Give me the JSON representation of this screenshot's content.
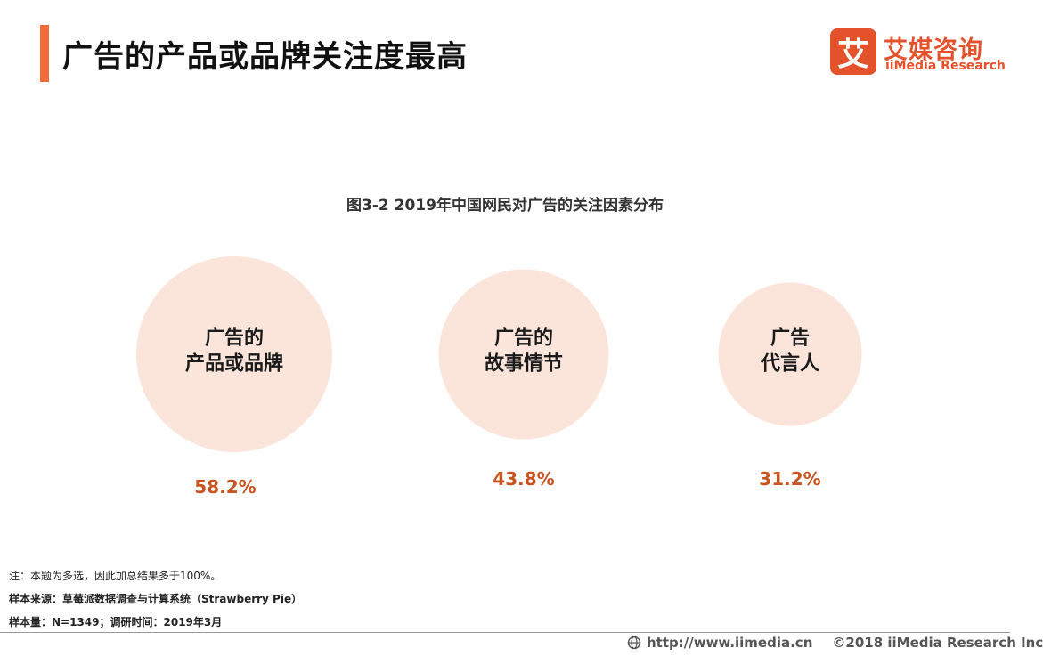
{
  "page": {
    "title": "广告的产品或品牌关注度最高",
    "accent_color": "#f26b3a"
  },
  "logo": {
    "mark": "艾",
    "name_cn": "艾媒咨询",
    "name_en": "iiMedia Research",
    "color": "#e4522b"
  },
  "chart_data": {
    "type": "bubble",
    "title": "图3-2 2019年中国网民对广告的关注因素分布",
    "unit": "%",
    "bubble_color": "#fbe5da",
    "value_color": "#c9541f",
    "categories": [
      [
        "广告的",
        "产品或品牌"
      ],
      [
        "广告的",
        "故事情节"
      ],
      [
        "广告",
        "代言人"
      ]
    ],
    "values": [
      58.2,
      43.8,
      31.2
    ],
    "value_labels": [
      "58.2%",
      "43.8%",
      "31.2%"
    ]
  },
  "notes": {
    "note": "注：本题为多选，因此加总结果多于100%。",
    "source": "样本来源：草莓派数据调查与计算系统（Strawberry Pie）",
    "sample": "样本量：N=1349；调研时间：2019年3月"
  },
  "footer": {
    "url": "http://www.iimedia.cn",
    "copyright": "©2018  iiMedia Research  Inc",
    "globe_icon": "globe-icon"
  }
}
